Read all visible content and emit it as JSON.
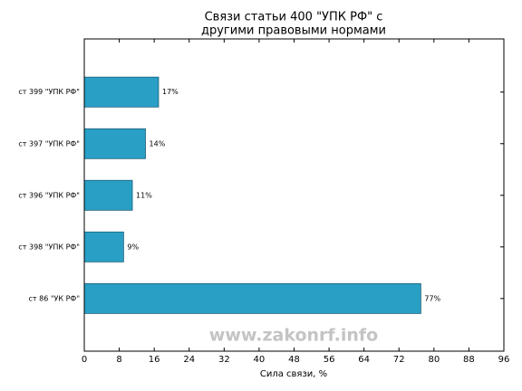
{
  "chart_data": {
    "type": "barh",
    "title": [
      "Связи статьи 400 \"УПК РФ\" с",
      "другими правовыми нормами"
    ],
    "xlabel": "Сила связи, %",
    "watermark": "www.zakonrf.info",
    "categories": [
      "ст 399 \"УПК РФ\"",
      "ст 397 \"УПК РФ\"",
      "ст 396 \"УПК РФ\"",
      "ст 398 \"УПК РФ\"",
      "ст 86 \"УК РФ\""
    ],
    "values": [
      17,
      14,
      11,
      9,
      77
    ],
    "value_labels": [
      "17%",
      "14%",
      "11%",
      "9%",
      "77%"
    ],
    "color": "#2a9fc6",
    "xlim": [
      0,
      96
    ],
    "xticks": [
      0,
      8,
      16,
      24,
      32,
      40,
      48,
      56,
      64,
      72,
      80,
      88,
      96
    ]
  }
}
